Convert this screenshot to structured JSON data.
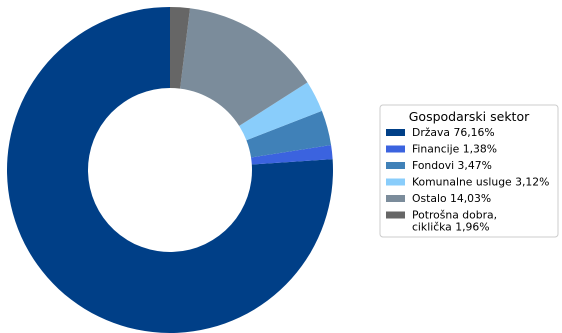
{
  "chart_data": {
    "type": "pie",
    "donut": true,
    "legend_title": "Gospodarski sektor",
    "legend_position": "right",
    "start": "top",
    "direction": "counterclockwise",
    "slices": [
      {
        "label": "Država 76,16%",
        "value": 76.16,
        "color": "#003f87"
      },
      {
        "label": "Financije 1,38%",
        "value": 1.38,
        "color": "#3b63df"
      },
      {
        "label": "Fondovi 3,47%",
        "value": 3.47,
        "color": "#4081b8"
      },
      {
        "label": "Komunalne usluge 3,12%",
        "value": 3.12,
        "color": "#89cdfb"
      },
      {
        "label": "Ostalo 14,03%",
        "value": 14.03,
        "color": "#7b8c9b"
      },
      {
        "label": "Potrošna dobra,\nciklička 1,96%",
        "value": 1.96,
        "color": "#666666"
      }
    ]
  }
}
